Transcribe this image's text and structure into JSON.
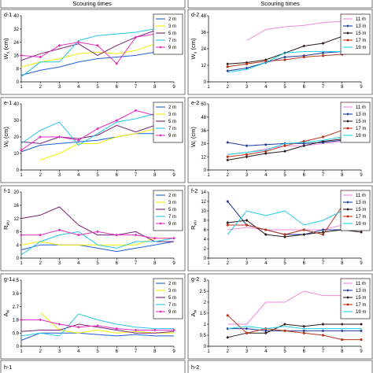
{
  "header": {
    "left_xlabel": "Scouring  times",
    "right_xlabel": "Scouring  times"
  },
  "colors": {
    "2 m": "#1f5fd8",
    "3 m": "#f2f000",
    "5 m": "#7a1f7a",
    "7 m": "#22c6e8",
    "9 m": "#e52dc0",
    "11 m": "#f28ad8",
    "13 m": "#203a98",
    "15 m": "#2a1a1a",
    "17 m": "#b8371d",
    "19 m": "#1fd0e8"
  },
  "markers": {
    "2 m": "none",
    "3 m": "none",
    "5 m": "none",
    "7 m": "none",
    "9 m": "diamond",
    "11 m": "none",
    "13 m": "diamond",
    "15 m": "diamond",
    "17 m": "circle",
    "19 m": "none"
  },
  "chart_data": [
    {
      "type": "line",
      "panel_label": "d-1",
      "x": [
        1,
        2,
        3,
        4,
        5,
        6,
        7,
        8,
        9
      ],
      "ylabel": "W_u (cm)",
      "ylim": [
        0,
        40
      ],
      "yticks": [
        "0",
        "8",
        "16",
        "24",
        "32",
        "40"
      ],
      "ytick_values": [
        0,
        8,
        16,
        24,
        32,
        40
      ],
      "xlabel": "",
      "legend": [
        "2 m",
        "3 m",
        "5 m",
        "7 m",
        "9 m"
      ],
      "series": [
        {
          "name": "2 m",
          "values": [
            4,
            7,
            9,
            12,
            14,
            15,
            16,
            18,
            20
          ]
        },
        {
          "name": "3 m",
          "values": [
            9,
            12,
            14,
            17,
            18,
            17,
            19,
            23,
            24
          ]
        },
        {
          "name": "5 m",
          "values": [
            13,
            17,
            20,
            23,
            16,
            22,
            27,
            31,
            32
          ]
        },
        {
          "name": "7 m",
          "values": [
            3,
            12,
            12,
            25,
            28,
            29,
            30,
            32,
            35
          ]
        },
        {
          "name": "9 m",
          "values": [
            16,
            15,
            22,
            24,
            22,
            11,
            27,
            29,
            34
          ]
        }
      ]
    },
    {
      "type": "line",
      "panel_label": "d-2",
      "x": [
        1,
        2,
        3,
        4,
        5,
        6,
        7,
        8,
        9
      ],
      "ylabel": "W_u (cm)",
      "ylim": [
        0,
        48
      ],
      "yticks": [
        "0",
        "12",
        "24",
        "36",
        "48"
      ],
      "ytick_values": [
        0,
        12,
        24,
        36,
        48
      ],
      "xlabel": "",
      "legend": [
        "11 m",
        "13 m",
        "15 m",
        "17 m",
        "19 m"
      ],
      "series": [
        {
          "name": "11 m",
          "values": [
            null,
            null,
            30,
            38,
            40,
            41,
            43,
            44,
            44
          ]
        },
        {
          "name": "13 m",
          "values": [
            null,
            8,
            10,
            14,
            18,
            19,
            21,
            22,
            23
          ]
        },
        {
          "name": "15 m",
          "values": [
            null,
            13,
            14,
            16,
            21,
            26,
            28,
            33,
            33
          ]
        },
        {
          "name": "17 m",
          "values": [
            null,
            11,
            13,
            15,
            16,
            18,
            19,
            20,
            21
          ]
        },
        {
          "name": "19 m",
          "values": [
            null,
            7,
            9,
            14,
            21,
            22,
            22,
            22,
            24
          ]
        }
      ]
    },
    {
      "type": "line",
      "panel_label": "e-1",
      "x": [
        1,
        2,
        3,
        4,
        5,
        6,
        7,
        8,
        9
      ],
      "ylabel": "W_r (cm)",
      "ylim": [
        0,
        40
      ],
      "yticks": [
        "0",
        "10",
        "20",
        "30",
        "40"
      ],
      "ytick_values": [
        0,
        10,
        20,
        30,
        40
      ],
      "xlabel": "",
      "legend": [
        "2 m",
        "3 m",
        "5 m",
        "7 m",
        "9 m"
      ],
      "series": [
        {
          "name": "2 m",
          "values": [
            11,
            15,
            16,
            17,
            18,
            20,
            22,
            22,
            24
          ]
        },
        {
          "name": "3 m",
          "values": [
            null,
            6,
            10,
            16,
            16,
            20,
            22,
            25,
            26
          ]
        },
        {
          "name": "5 m",
          "values": [
            17,
            16,
            20,
            19,
            21,
            27,
            23,
            27,
            28
          ]
        },
        {
          "name": "7 m",
          "values": [
            16,
            24,
            29,
            15,
            22,
            29,
            31,
            34,
            37
          ]
        },
        {
          "name": "9 m",
          "values": [
            12,
            20,
            20,
            18,
            25,
            30,
            36,
            33,
            32
          ]
        }
      ]
    },
    {
      "type": "line",
      "panel_label": "e-2",
      "x": [
        1,
        2,
        3,
        4,
        5,
        6,
        7,
        8,
        9
      ],
      "ylabel": "W_r (cm)",
      "ylim": [
        0,
        60
      ],
      "yticks": [
        "0",
        "12",
        "24",
        "36",
        "48",
        "60"
      ],
      "ytick_values": [
        0,
        12,
        24,
        36,
        48,
        60
      ],
      "xlabel": "",
      "legend": [
        "11 m",
        "13 m",
        "15 m",
        "17 m",
        "19 m"
      ],
      "series": [
        {
          "name": "11 m",
          "values": [
            null,
            14,
            16,
            19,
            22,
            22,
            24,
            26,
            27
          ]
        },
        {
          "name": "13 m",
          "values": [
            null,
            25,
            22,
            23,
            24,
            24,
            25,
            27,
            28
          ]
        },
        {
          "name": "15 m",
          "values": [
            null,
            9,
            12,
            15,
            17,
            22,
            26,
            28,
            28
          ]
        },
        {
          "name": "17 m",
          "values": [
            null,
            12,
            14,
            17,
            22,
            26,
            30,
            36,
            52
          ]
        },
        {
          "name": "19 m",
          "values": [
            null,
            14,
            16,
            18,
            24,
            25,
            27,
            30,
            33
          ]
        }
      ]
    },
    {
      "type": "line",
      "panel_label": "f-1",
      "x": [
        1,
        2,
        3,
        4,
        5,
        6,
        7,
        8,
        9
      ],
      "ylabel": "R_wu",
      "ylim": [
        0,
        20
      ],
      "yticks": [
        "0",
        "4",
        "8",
        "12",
        "16",
        "20"
      ],
      "ytick_values": [
        0,
        4,
        8,
        12,
        16,
        20
      ],
      "xlabel": "",
      "legend": [
        "2 m",
        "3 m",
        "5 m",
        "7 m",
        "9 m"
      ],
      "series": [
        {
          "name": "2 m",
          "values": [
            2.5,
            4,
            4,
            4,
            3,
            2,
            3,
            4,
            5
          ]
        },
        {
          "name": "3 m",
          "values": [
            4,
            5,
            4,
            4,
            4,
            4,
            4,
            6,
            6
          ]
        },
        {
          "name": "5 m",
          "values": [
            12,
            13,
            15.5,
            10,
            7,
            7,
            8,
            5,
            5
          ]
        },
        {
          "name": "7 m",
          "values": [
            1,
            5,
            7,
            8,
            4,
            3,
            5,
            5,
            6
          ]
        },
        {
          "name": "9 m",
          "values": [
            7,
            7,
            8.5,
            7,
            8,
            7,
            7,
            6,
            6
          ]
        }
      ]
    },
    {
      "type": "line",
      "panel_label": "f-2",
      "x": [
        1,
        2,
        3,
        4,
        5,
        6,
        7,
        8,
        9
      ],
      "ylabel": "R_wu",
      "ylim": [
        0,
        14
      ],
      "yticks": [
        "0",
        "2",
        "4",
        "6",
        "8",
        "10",
        "12",
        "14"
      ],
      "ytick_values": [
        0,
        2,
        4,
        6,
        8,
        10,
        12,
        14
      ],
      "xlabel": "",
      "legend": [
        "11 m",
        "13 m",
        "15 m",
        "17 m",
        "19 m"
      ],
      "series": [
        {
          "name": "11 m",
          "values": [
            null,
            6,
            6.5,
            6,
            6,
            6,
            6,
            7,
            6
          ]
        },
        {
          "name": "13 m",
          "values": [
            null,
            12,
            7,
            6,
            5,
            5,
            6,
            6,
            6
          ]
        },
        {
          "name": "15 m",
          "values": [
            null,
            7.5,
            8,
            5,
            4.5,
            5,
            5.5,
            6,
            5.5
          ]
        },
        {
          "name": "17 m",
          "values": [
            null,
            7,
            7,
            6,
            5,
            6,
            5,
            11,
            11
          ]
        },
        {
          "name": "19 m",
          "values": [
            null,
            5,
            10,
            9,
            10,
            7,
            8,
            10,
            11
          ]
        }
      ]
    },
    {
      "type": "line",
      "panel_label": "g-1",
      "x": [
        1,
        2,
        3,
        4,
        5,
        6,
        7,
        8,
        9
      ],
      "ylabel": "A_w",
      "ylim": [
        0,
        4.5
      ],
      "yticks": [
        "0",
        "0.9",
        "1.8",
        "2.7",
        "3.6",
        "4.5"
      ],
      "ytick_values": [
        0,
        0.9,
        1.8,
        2.7,
        3.6,
        4.5
      ],
      "xlabel": "",
      "legend": [
        "2 m",
        "3 m",
        "5 m",
        "7 m",
        "9 m"
      ],
      "series": [
        {
          "name": "2 m",
          "values": [
            0.4,
            0.9,
            0.9,
            0.9,
            0.8,
            0.7,
            0.8,
            0.7,
            0.7
          ]
        },
        {
          "name": "3 m",
          "values": [
            null,
            2.3,
            1.1,
            0.9,
            1.1,
            0.9,
            1.0,
            0.9,
            0.9
          ]
        },
        {
          "name": "5 m",
          "values": [
            1.0,
            1.1,
            1.1,
            1.5,
            1.3,
            1.1,
            0.9,
            0.9,
            1.0
          ]
        },
        {
          "name": "7 m",
          "values": [
            0.7,
            0.9,
            0.7,
            2.2,
            1.8,
            1.5,
            1.3,
            1.2,
            1.2
          ]
        },
        {
          "name": "9 m",
          "values": [
            1.8,
            1.8,
            1.5,
            1.3,
            1.4,
            1.2,
            1.1,
            1.1,
            1.1
          ]
        }
      ]
    },
    {
      "type": "line",
      "panel_label": "g-2",
      "x": [
        1,
        2,
        3,
        4,
        5,
        6,
        7,
        8,
        9
      ],
      "ylabel": "A_w",
      "ylim": [
        0,
        3
      ],
      "yticks": [
        "0",
        "0.5",
        "1",
        "1.5",
        "2",
        "2.5",
        "3"
      ],
      "ytick_values": [
        0,
        0.5,
        1,
        1.5,
        2,
        2.5,
        3
      ],
      "xlabel": "",
      "legend": [
        "11 m",
        "13 m",
        "15 m",
        "17 m",
        "19 m"
      ],
      "series": [
        {
          "name": "11 m",
          "values": [
            null,
            1.0,
            1.0,
            2.0,
            2.0,
            2.5,
            2.3,
            2.3,
            2.2
          ]
        },
        {
          "name": "13 m",
          "values": [
            null,
            0.8,
            0.8,
            0.7,
            0.7,
            0.7,
            0.7,
            0.7,
            0.7
          ]
        },
        {
          "name": "15 m",
          "values": [
            null,
            0.4,
            0.6,
            0.6,
            1.0,
            0.9,
            1.0,
            1.0,
            1.0
          ]
        },
        {
          "name": "17 m",
          "values": [
            null,
            1.4,
            0.6,
            0.8,
            0.7,
            0.6,
            0.5,
            0.3,
            0.3
          ]
        },
        {
          "name": "19 m",
          "values": [
            null,
            0.8,
            0.9,
            0.8,
            0.9,
            0.8,
            0.8,
            0.8,
            0.8
          ]
        }
      ]
    }
  ],
  "footer": {
    "left_label": "h-1",
    "right_label": "h-2"
  }
}
